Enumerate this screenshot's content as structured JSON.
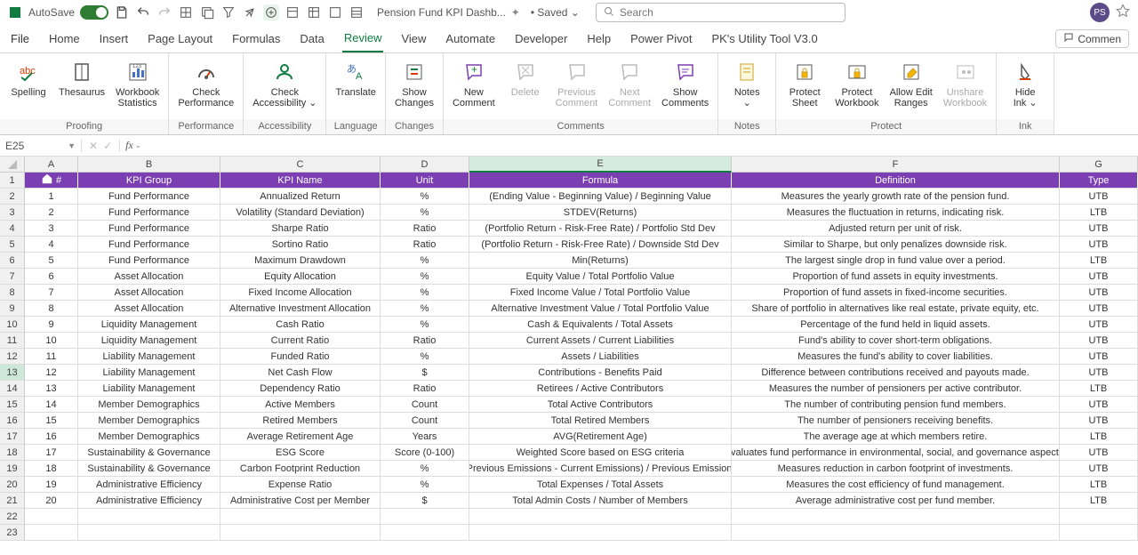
{
  "titleBar": {
    "autosaveLabel": "AutoSave",
    "autosaveOn": "On",
    "fileName": "Pension Fund KPI Dashb...",
    "savedLabel": "• Saved ⌄",
    "searchPlaceholder": "Search",
    "avatarInitials": "PS"
  },
  "tabs": {
    "items": [
      "File",
      "Home",
      "Insert",
      "Page Layout",
      "Formulas",
      "Data",
      "Review",
      "View",
      "Automate",
      "Developer",
      "Help",
      "Power Pivot",
      "PK's Utility Tool V3.0"
    ],
    "activeIndex": 6,
    "commentsBtn": "Commen"
  },
  "ribbon": {
    "groups": [
      {
        "label": "Proofing",
        "buttons": [
          {
            "label": "Spelling",
            "icon": "abc"
          },
          {
            "label": "Thesaurus",
            "icon": "book"
          },
          {
            "label": "Workbook\nStatistics",
            "icon": "stats"
          }
        ]
      },
      {
        "label": "Performance",
        "buttons": [
          {
            "label": "Check\nPerformance",
            "icon": "gauge"
          }
        ]
      },
      {
        "label": "Accessibility",
        "buttons": [
          {
            "label": "Check\nAccessibility ⌄",
            "icon": "person"
          }
        ]
      },
      {
        "label": "Language",
        "buttons": [
          {
            "label": "Translate",
            "icon": "translate"
          }
        ]
      },
      {
        "label": "Changes",
        "buttons": [
          {
            "label": "Show\nChanges",
            "icon": "changes"
          }
        ]
      },
      {
        "label": "Comments",
        "buttons": [
          {
            "label": "New\nComment",
            "icon": "newcomment"
          },
          {
            "label": "Delete",
            "icon": "deletecomment",
            "disabled": true
          },
          {
            "label": "Previous\nComment",
            "icon": "prevcomment",
            "disabled": true
          },
          {
            "label": "Next\nComment",
            "icon": "nextcomment",
            "disabled": true
          },
          {
            "label": "Show\nComments",
            "icon": "showcomments"
          }
        ]
      },
      {
        "label": "Notes",
        "buttons": [
          {
            "label": "Notes\n⌄",
            "icon": "notes"
          }
        ]
      },
      {
        "label": "Protect",
        "buttons": [
          {
            "label": "Protect\nSheet",
            "icon": "protectsheet"
          },
          {
            "label": "Protect\nWorkbook",
            "icon": "protectwb"
          },
          {
            "label": "Allow Edit\nRanges",
            "icon": "allowedit"
          },
          {
            "label": "Unshare\nWorkbook",
            "icon": "unshare",
            "disabled": true
          }
        ]
      },
      {
        "label": "Ink",
        "buttons": [
          {
            "label": "Hide\nInk ⌄",
            "icon": "ink"
          }
        ]
      }
    ]
  },
  "nameBox": "E25",
  "columns": [
    "A",
    "B",
    "C",
    "D",
    "E",
    "F",
    "G"
  ],
  "headerRow": [
    "#",
    "KPI Group",
    "KPI Name",
    "Unit",
    "Formula",
    "Definition",
    "Type"
  ],
  "rows": [
    [
      "1",
      "Fund Performance",
      "Annualized Return",
      "%",
      "(Ending Value - Beginning Value) / Beginning Value",
      "Measures the yearly growth rate of the pension fund.",
      "UTB"
    ],
    [
      "2",
      "Fund Performance",
      "Volatility (Standard Deviation)",
      "%",
      "STDEV(Returns)",
      "Measures the fluctuation in returns, indicating risk.",
      "LTB"
    ],
    [
      "3",
      "Fund Performance",
      "Sharpe Ratio",
      "Ratio",
      "(Portfolio Return - Risk-Free Rate) / Portfolio Std Dev",
      "Adjusted return per unit of risk.",
      "UTB"
    ],
    [
      "4",
      "Fund Performance",
      "Sortino Ratio",
      "Ratio",
      "(Portfolio Return - Risk-Free Rate) / Downside Std Dev",
      "Similar to Sharpe, but only penalizes downside risk.",
      "UTB"
    ],
    [
      "5",
      "Fund Performance",
      "Maximum Drawdown",
      "%",
      "Min(Returns)",
      "The largest single drop in fund value over a period.",
      "LTB"
    ],
    [
      "6",
      "Asset Allocation",
      "Equity Allocation",
      "%",
      "Equity Value / Total Portfolio Value",
      "Proportion of fund assets in equity investments.",
      "UTB"
    ],
    [
      "7",
      "Asset Allocation",
      "Fixed Income Allocation",
      "%",
      "Fixed Income Value / Total Portfolio Value",
      "Proportion of fund assets in fixed-income securities.",
      "UTB"
    ],
    [
      "8",
      "Asset Allocation",
      "Alternative Investment Allocation",
      "%",
      "Alternative Investment Value / Total Portfolio Value",
      "Share of portfolio in alternatives like real estate, private equity, etc.",
      "UTB"
    ],
    [
      "9",
      "Liquidity Management",
      "Cash Ratio",
      "%",
      "Cash & Equivalents / Total Assets",
      "Percentage of the fund held in liquid assets.",
      "UTB"
    ],
    [
      "10",
      "Liquidity Management",
      "Current Ratio",
      "Ratio",
      "Current Assets / Current Liabilities",
      "Fund's ability to cover short-term obligations.",
      "UTB"
    ],
    [
      "11",
      "Liability Management",
      "Funded Ratio",
      "%",
      "Assets / Liabilities",
      "Measures the fund's ability to cover liabilities.",
      "UTB"
    ],
    [
      "12",
      "Liability Management",
      "Net Cash Flow",
      "$",
      "Contributions - Benefits Paid",
      "Difference between contributions received and payouts made.",
      "UTB"
    ],
    [
      "13",
      "Liability Management",
      "Dependency Ratio",
      "Ratio",
      "Retirees / Active Contributors",
      "Measures the number of pensioners per active contributor.",
      "LTB"
    ],
    [
      "14",
      "Member Demographics",
      "Active Members",
      "Count",
      "Total Active Contributors",
      "The number of contributing pension fund members.",
      "UTB"
    ],
    [
      "15",
      "Member Demographics",
      "Retired Members",
      "Count",
      "Total Retired Members",
      "The number of pensioners receiving benefits.",
      "UTB"
    ],
    [
      "16",
      "Member Demographics",
      "Average Retirement Age",
      "Years",
      "AVG(Retirement Age)",
      "The average age at which members retire.",
      "LTB"
    ],
    [
      "17",
      "Sustainability & Governance",
      "ESG Score",
      "Score (0-100)",
      "Weighted Score based on ESG criteria",
      "Evaluates fund performance in environmental, social, and governance aspects.",
      "UTB"
    ],
    [
      "18",
      "Sustainability & Governance",
      "Carbon Footprint Reduction",
      "%",
      "(Previous Emissions - Current Emissions) / Previous Emissions",
      "Measures reduction in carbon footprint of investments.",
      "UTB"
    ],
    [
      "19",
      "Administrative Efficiency",
      "Expense Ratio",
      "%",
      "Total Expenses / Total Assets",
      "Measures the cost efficiency of fund management.",
      "LTB"
    ],
    [
      "20",
      "Administrative Efficiency",
      "Administrative Cost per Member",
      "$",
      "Total Admin Costs / Number of Members",
      "Average administrative cost per fund member.",
      "LTB"
    ]
  ],
  "colors": {
    "headerBg": "#7b3fb3",
    "accent": "#107c41"
  }
}
